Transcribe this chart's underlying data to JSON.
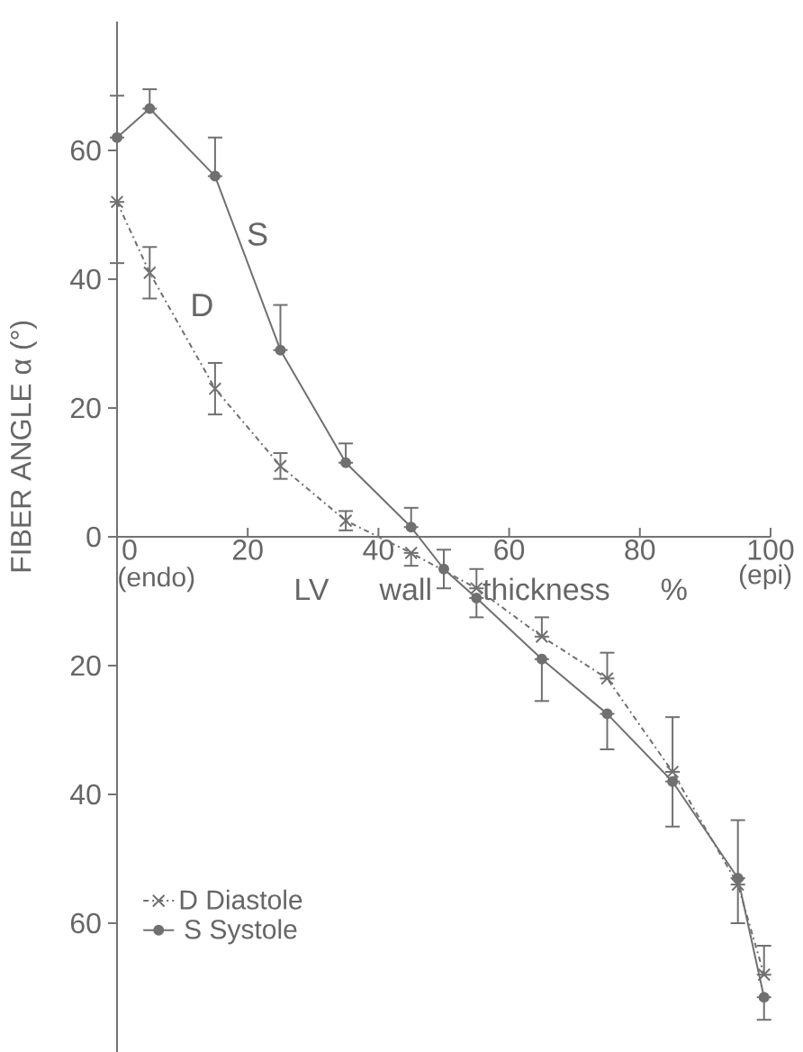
{
  "chart_data": {
    "type": "line",
    "xlabel": "LV wall thickness %",
    "ylabel": "FIBER ANGLE α (°)",
    "series": [
      {
        "name": "D Diastole",
        "color": "#707070",
        "marker": "cross",
        "line_style": "dashdot",
        "x": [
          0,
          5,
          15,
          25,
          35,
          45,
          55,
          65,
          75,
          85,
          95,
          99
        ],
        "values": [
          52,
          41,
          23,
          11,
          2.5,
          -2.5,
          -8,
          -15.5,
          -22,
          -36.5,
          -54,
          -68
        ],
        "errors": [
          [
            42.5,
            52
          ],
          4,
          4,
          2,
          1.5,
          [
            -4.5,
            -2.5
          ],
          [
            -8,
            -5
          ],
          [
            -15.5,
            -12.5
          ],
          [
            -22,
            -18
          ],
          [
            -36.5,
            -28
          ],
          [
            -54,
            -44
          ],
          [
            -68,
            -63.5
          ]
        ]
      },
      {
        "name": "S Systole",
        "color": "#707070",
        "marker": "circle",
        "line_style": "solid",
        "x": [
          0,
          5,
          15,
          25,
          35,
          45,
          50,
          55,
          65,
          75,
          85,
          95,
          99
        ],
        "values": [
          62,
          66.5,
          56,
          29,
          11.5,
          1.5,
          -5,
          -9.5,
          -19,
          -27.5,
          -38,
          -53,
          -71.5
        ],
        "errors": [
          [
            62,
            68.5
          ],
          [
            66.5,
            69.5
          ],
          [
            56,
            62
          ],
          [
            29,
            36
          ],
          [
            11.5,
            14.5
          ],
          [
            1.5,
            4.5
          ],
          3,
          [
            -12.5,
            -9.5
          ],
          [
            -25.5,
            -19
          ],
          [
            -33,
            -27.5
          ],
          [
            -45,
            -38
          ],
          [
            -60,
            -53
          ],
          [
            -75,
            -71.5
          ]
        ]
      }
    ],
    "xlim": [
      0,
      100
    ],
    "ylim": [
      -80,
      80
    ],
    "xticks": [
      0,
      20,
      40,
      60,
      80,
      100
    ],
    "yticks": [
      {
        "value": -60,
        "label": "60"
      },
      {
        "value": -40,
        "label": "40"
      },
      {
        "value": -20,
        "label": "20"
      },
      0,
      20,
      40,
      60
    ],
    "annotations": [
      "S",
      "D",
      "(endo)",
      "(epi)"
    ],
    "legend": "bottom left",
    "grid": false
  }
}
